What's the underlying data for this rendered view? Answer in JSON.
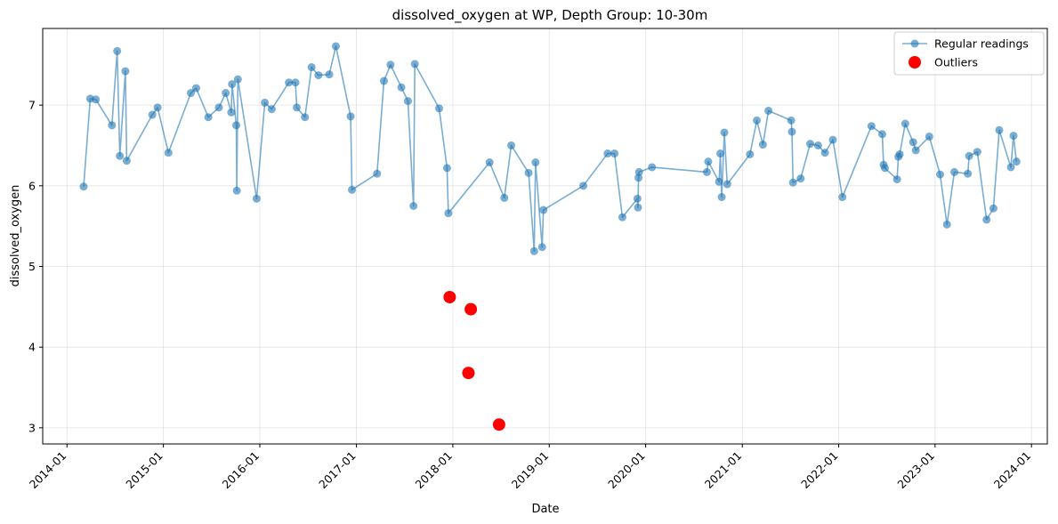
{
  "chart_data": {
    "type": "line",
    "title": "dissolved_oxygen at WP, Depth Group: 10-30m",
    "xlabel": "Date",
    "ylabel": "dissolved_oxygen",
    "xlim": [
      "2013-10-01",
      "2024-03-01"
    ],
    "ylim": [
      2.8,
      7.95
    ],
    "x_ticks": [
      "2014-01",
      "2015-01",
      "2016-01",
      "2017-01",
      "2018-01",
      "2019-01",
      "2020-01",
      "2021-01",
      "2022-01",
      "2023-01",
      "2024-01"
    ],
    "y_ticks": [
      3,
      4,
      5,
      6,
      7
    ],
    "grid": true,
    "legend_position": "upper right",
    "series": [
      {
        "name": "Regular readings",
        "color": "#1f77b4",
        "points": [
          [
            "2014-03-05",
            5.99
          ],
          [
            "2014-03-30",
            7.08
          ],
          [
            "2014-04-20",
            7.07
          ],
          [
            "2014-06-20",
            6.75
          ],
          [
            "2014-07-10",
            7.67
          ],
          [
            "2014-07-20",
            6.37
          ],
          [
            "2014-08-10",
            7.42
          ],
          [
            "2014-08-15",
            6.31
          ],
          [
            "2014-11-20",
            6.88
          ],
          [
            "2014-12-10",
            6.97
          ],
          [
            "2015-01-20",
            6.41
          ],
          [
            "2015-04-15",
            7.15
          ],
          [
            "2015-05-05",
            7.21
          ],
          [
            "2015-06-20",
            6.85
          ],
          [
            "2015-07-30",
            6.97
          ],
          [
            "2015-08-25",
            7.15
          ],
          [
            "2015-09-15",
            6.91
          ],
          [
            "2015-09-18",
            7.26
          ],
          [
            "2015-10-04",
            6.75
          ],
          [
            "2015-10-06",
            5.94
          ],
          [
            "2015-10-10",
            7.32
          ],
          [
            "2015-12-20",
            5.84
          ],
          [
            "2016-01-20",
            7.03
          ],
          [
            "2016-02-15",
            6.95
          ],
          [
            "2016-04-20",
            7.28
          ],
          [
            "2016-05-15",
            7.28
          ],
          [
            "2016-05-20",
            6.97
          ],
          [
            "2016-06-20",
            6.85
          ],
          [
            "2016-07-15",
            7.47
          ],
          [
            "2016-08-10",
            7.37
          ],
          [
            "2016-09-20",
            7.38
          ],
          [
            "2016-10-15",
            7.73
          ],
          [
            "2016-12-10",
            6.86
          ],
          [
            "2016-12-15",
            5.95
          ],
          [
            "2017-03-20",
            6.15
          ],
          [
            "2017-04-15",
            7.3
          ],
          [
            "2017-05-10",
            7.5
          ],
          [
            "2017-06-20",
            7.22
          ],
          [
            "2017-07-15",
            7.05
          ],
          [
            "2017-08-05",
            5.75
          ],
          [
            "2017-08-10",
            7.51
          ],
          [
            "2017-11-10",
            6.96
          ],
          [
            "2017-12-10",
            6.22
          ],
          [
            "2017-12-15",
            5.66
          ],
          [
            "2018-05-20",
            6.29
          ],
          [
            "2018-07-15",
            5.85
          ],
          [
            "2018-08-10",
            6.5
          ],
          [
            "2018-10-15",
            6.16
          ],
          [
            "2018-11-05",
            5.19
          ],
          [
            "2018-11-10",
            6.29
          ],
          [
            "2018-12-05",
            5.24
          ],
          [
            "2018-12-10",
            5.7
          ],
          [
            "2019-05-10",
            6.0
          ],
          [
            "2019-08-10",
            6.4
          ],
          [
            "2019-09-05",
            6.4
          ],
          [
            "2019-10-05",
            5.61
          ],
          [
            "2019-12-01",
            5.84
          ],
          [
            "2019-12-03",
            5.73
          ],
          [
            "2019-12-05",
            6.1
          ],
          [
            "2019-12-07",
            6.17
          ],
          [
            "2020-01-25",
            6.23
          ],
          [
            "2020-08-20",
            6.17
          ],
          [
            "2020-08-25",
            6.3
          ],
          [
            "2020-10-05",
            6.05
          ],
          [
            "2020-10-10",
            6.4
          ],
          [
            "2020-10-15",
            5.86
          ],
          [
            "2020-10-25",
            6.66
          ],
          [
            "2020-11-05",
            6.02
          ],
          [
            "2021-01-30",
            6.39
          ],
          [
            "2021-02-25",
            6.81
          ],
          [
            "2021-03-20",
            6.51
          ],
          [
            "2021-04-10",
            6.93
          ],
          [
            "2021-07-05",
            6.81
          ],
          [
            "2021-07-08",
            6.67
          ],
          [
            "2021-07-12",
            6.04
          ],
          [
            "2021-08-10",
            6.09
          ],
          [
            "2021-09-15",
            6.52
          ],
          [
            "2021-10-15",
            6.5
          ],
          [
            "2021-11-10",
            6.41
          ],
          [
            "2021-12-10",
            6.57
          ],
          [
            "2022-01-15",
            5.86
          ],
          [
            "2022-05-05",
            6.74
          ],
          [
            "2022-06-15",
            6.64
          ],
          [
            "2022-06-20",
            6.26
          ],
          [
            "2022-06-25",
            6.22
          ],
          [
            "2022-08-10",
            6.08
          ],
          [
            "2022-08-15",
            6.36
          ],
          [
            "2022-08-20",
            6.39
          ],
          [
            "2022-09-10",
            6.77
          ],
          [
            "2022-10-10",
            6.54
          ],
          [
            "2022-10-20",
            6.44
          ],
          [
            "2022-12-10",
            6.61
          ],
          [
            "2023-01-20",
            6.14
          ],
          [
            "2023-02-15",
            5.52
          ],
          [
            "2023-03-15",
            6.17
          ],
          [
            "2023-05-05",
            6.15
          ],
          [
            "2023-05-10",
            6.37
          ],
          [
            "2023-06-10",
            6.42
          ],
          [
            "2023-07-15",
            5.58
          ],
          [
            "2023-08-10",
            5.72
          ],
          [
            "2023-09-01",
            6.69
          ],
          [
            "2023-10-15",
            6.23
          ],
          [
            "2023-10-25",
            6.62
          ],
          [
            "2023-11-05",
            6.3
          ]
        ]
      },
      {
        "name": "Outliers",
        "color": "#ff0000",
        "points": [
          [
            "2017-12-20",
            4.62
          ],
          [
            "2018-03-01",
            3.68
          ],
          [
            "2018-03-10",
            4.47
          ],
          [
            "2018-06-25",
            3.04
          ]
        ]
      }
    ]
  }
}
